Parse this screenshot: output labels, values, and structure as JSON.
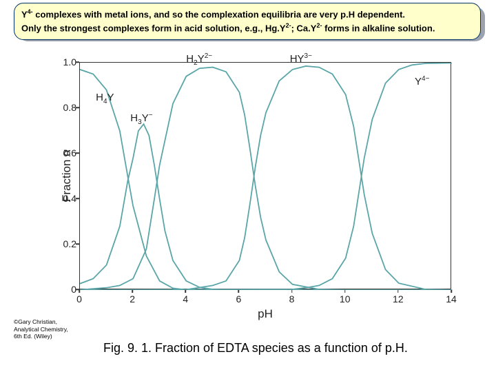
{
  "info_box": {
    "line1_pre": "Y",
    "line1_sup": "4-",
    "line1_post": " complexes with metal ions, and so the complexation equilibria are very p.H dependent.",
    "line2_pre": "Only the strongest complexes form in acid solution, e.g., Hg.Y",
    "line2_sup1": "2-",
    "line2_mid": "; Ca.Y",
    "line2_sup2": "2-",
    "line2_post": " forms in alkaline solution.",
    "bg_color": "#ffffcc",
    "border_color": "#003366",
    "shadow_color": "#9ca3af"
  },
  "chart": {
    "type": "line",
    "xlabel": "pH",
    "ylabel": "Fraction α",
    "xlim": [
      0,
      14
    ],
    "ylim": [
      0,
      1.0
    ],
    "xtick_step": 2,
    "ytick_step": 0.2,
    "xticks": [
      0,
      2,
      4,
      6,
      8,
      10,
      12,
      14
    ],
    "yticks_labels": [
      "0",
      "0.2",
      "0.4",
      "0.6",
      "0.8",
      "1.0"
    ],
    "line_color": "#5aa5a8",
    "line_width": 1.8,
    "axis_color": "#333333",
    "background_color": "#ffffff",
    "label_fontsize": 17,
    "tick_fontsize": 14,
    "series_label_fontsize": 15,
    "series_labels": {
      "H4Y": "H₄Y",
      "H3Y": "H₃Y⁻",
      "H2Y": "H₂Y²⁻",
      "HY": "HY³⁻",
      "Y": "Y⁴⁻"
    },
    "series": {
      "H4Y": [
        [
          0,
          0.97
        ],
        [
          0.5,
          0.95
        ],
        [
          1,
          0.88
        ],
        [
          1.5,
          0.7
        ],
        [
          1.8,
          0.5
        ],
        [
          2,
          0.37
        ],
        [
          2.5,
          0.15
        ],
        [
          3,
          0.04
        ],
        [
          3.5,
          0.008
        ],
        [
          4,
          0.001
        ],
        [
          5,
          0
        ],
        [
          14,
          0
        ]
      ],
      "H3Y": [
        [
          0,
          0.028
        ],
        [
          0.5,
          0.05
        ],
        [
          1,
          0.11
        ],
        [
          1.5,
          0.28
        ],
        [
          1.8,
          0.48
        ],
        [
          2,
          0.58
        ],
        [
          2.2,
          0.7
        ],
        [
          2.4,
          0.73
        ],
        [
          2.6,
          0.68
        ],
        [
          2.8,
          0.55
        ],
        [
          3,
          0.4
        ],
        [
          3.2,
          0.26
        ],
        [
          3.5,
          0.13
        ],
        [
          4,
          0.04
        ],
        [
          4.5,
          0.012
        ],
        [
          5,
          0.003
        ],
        [
          6,
          0
        ],
        [
          14,
          0
        ]
      ],
      "H2Y": [
        [
          0,
          0.001
        ],
        [
          1,
          0.01
        ],
        [
          1.5,
          0.02
        ],
        [
          2,
          0.05
        ],
        [
          2.5,
          0.18
        ],
        [
          2.8,
          0.4
        ],
        [
          3,
          0.55
        ],
        [
          3.5,
          0.82
        ],
        [
          4,
          0.94
        ],
        [
          4.5,
          0.975
        ],
        [
          5,
          0.98
        ],
        [
          5.5,
          0.96
        ],
        [
          6,
          0.87
        ],
        [
          6.2,
          0.77
        ],
        [
          6.4,
          0.62
        ],
        [
          6.6,
          0.46
        ],
        [
          6.8,
          0.32
        ],
        [
          7,
          0.22
        ],
        [
          7.5,
          0.08
        ],
        [
          8,
          0.025
        ],
        [
          9,
          0.003
        ],
        [
          10,
          0
        ]
      ],
      "HY": [
        [
          0,
          0
        ],
        [
          3,
          0
        ],
        [
          4,
          0.002
        ],
        [
          5,
          0.02
        ],
        [
          5.5,
          0.04
        ],
        [
          6,
          0.13
        ],
        [
          6.2,
          0.23
        ],
        [
          6.4,
          0.38
        ],
        [
          6.6,
          0.54
        ],
        [
          6.8,
          0.68
        ],
        [
          7,
          0.78
        ],
        [
          7.5,
          0.92
        ],
        [
          8,
          0.97
        ],
        [
          8.5,
          0.985
        ],
        [
          9,
          0.98
        ],
        [
          9.5,
          0.95
        ],
        [
          10,
          0.86
        ],
        [
          10.3,
          0.72
        ],
        [
          10.5,
          0.57
        ],
        [
          10.7,
          0.42
        ],
        [
          11,
          0.25
        ],
        [
          11.5,
          0.09
        ],
        [
          12,
          0.03
        ],
        [
          13,
          0.003
        ],
        [
          14,
          0
        ]
      ],
      "Y": [
        [
          0,
          0
        ],
        [
          8,
          0.003
        ],
        [
          8.5,
          0.01
        ],
        [
          9,
          0.02
        ],
        [
          9.5,
          0.05
        ],
        [
          10,
          0.14
        ],
        [
          10.3,
          0.28
        ],
        [
          10.5,
          0.43
        ],
        [
          10.7,
          0.58
        ],
        [
          11,
          0.75
        ],
        [
          11.5,
          0.91
        ],
        [
          12,
          0.97
        ],
        [
          12.5,
          0.99
        ],
        [
          13,
          0.997
        ],
        [
          14,
          0.999
        ]
      ]
    },
    "label_positions": {
      "H4Y": [
        0.6,
        0.85
      ],
      "H3Y": [
        1.9,
        0.76
      ],
      "H2Y": [
        4.0,
        1.02
      ],
      "HY": [
        7.9,
        1.02
      ],
      "Y": [
        12.6,
        0.92
      ]
    }
  },
  "credit": {
    "line1": "©Gary Christian,",
    "line2": "Analytical Chemistry,",
    "line3": "6th Ed. (Wiley)"
  },
  "caption": "Fig. 9. 1. Fraction of EDTA species as a function of p.H."
}
